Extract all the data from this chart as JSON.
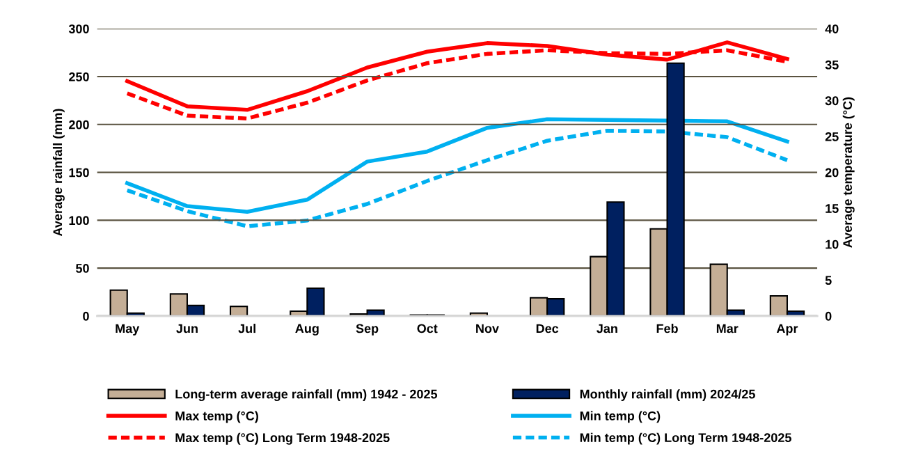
{
  "chart_data": {
    "type": "bar",
    "categories": [
      "May",
      "Jun",
      "Jul",
      "Aug",
      "Sep",
      "Oct",
      "Nov",
      "Dec",
      "Jan",
      "Feb",
      "Mar",
      "Apr"
    ],
    "ylabel": "Average rainfall (mm)",
    "y2label": "Average temperature (°C)",
    "ylim": [
      0,
      300
    ],
    "yticks": [
      0,
      50,
      100,
      150,
      200,
      250,
      300
    ],
    "y2lim": [
      0,
      40
    ],
    "y2ticks": [
      0,
      5,
      10,
      15,
      20,
      25,
      30,
      35,
      40
    ],
    "grid": "y",
    "legend": "bottom",
    "series": [
      {
        "name": "Long-term average rainfall (mm) 1942 - 2025",
        "color": "#c4ae96",
        "values": [
          27,
          23,
          10,
          5,
          2,
          1,
          3,
          19,
          62,
          91,
          54,
          21
        ]
      },
      {
        "name": "Monthly rainfall (mm) 2024/25",
        "color": "#002060",
        "values": [
          3,
          11,
          0,
          29,
          6,
          1,
          0,
          18,
          119,
          264,
          6,
          5
        ]
      },
      {
        "name": "Max temp (°C)",
        "type": "line",
        "axis": "y2",
        "color": "#ff0000",
        "line_style": "solid",
        "values": [
          32.7,
          29.2,
          28.7,
          31.3,
          34.6,
          36.8,
          38.0,
          37.6,
          36.4,
          35.7,
          38.1,
          35.8
        ]
      },
      {
        "name": "Min temp (°C)",
        "type": "line",
        "axis": "y2",
        "color": "#00b0f0",
        "line_style": "solid",
        "values": [
          18.5,
          15.3,
          14.5,
          16.2,
          21.5,
          22.9,
          26.2,
          27.4,
          27.3,
          27.2,
          27.1,
          24.3
        ]
      },
      {
        "name": "Max temp (°C) Long Term 1948-2025",
        "type": "line",
        "axis": "y2",
        "color": "#ff0000",
        "line_style": "dashed",
        "values": [
          31.0,
          27.9,
          27.5,
          29.7,
          32.8,
          35.2,
          36.5,
          37.0,
          36.6,
          36.5,
          37.0,
          35.4
        ]
      },
      {
        "name": "Min temp (°C) Long Term 1948-2025",
        "type": "line",
        "axis": "y2",
        "color": "#00b0f0",
        "line_style": "dashed",
        "values": [
          17.5,
          14.6,
          12.5,
          13.3,
          15.6,
          18.8,
          21.7,
          24.4,
          25.8,
          25.7,
          24.9,
          21.7
        ]
      }
    ]
  }
}
